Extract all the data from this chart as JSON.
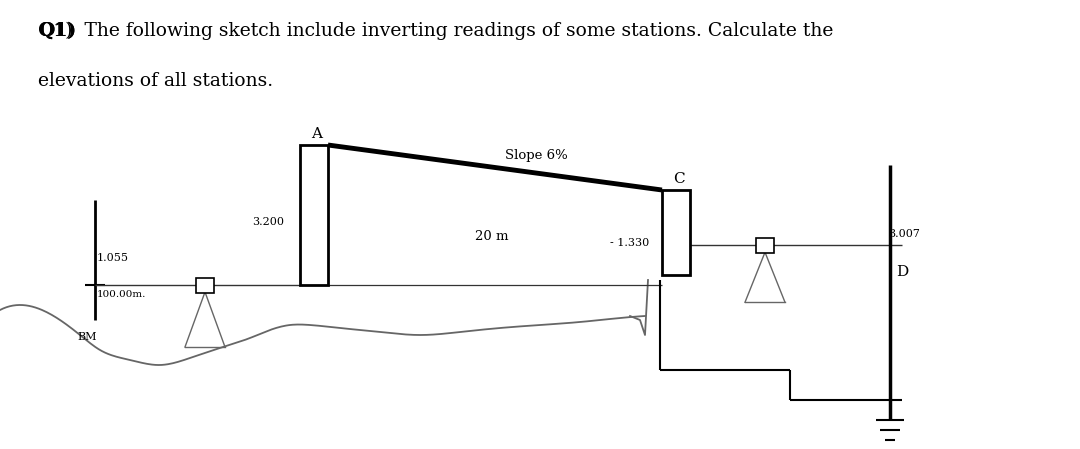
{
  "bg_color": "#ffffff",
  "text_color": "#000000",
  "title_bold": "Q1)",
  "title_rest": "  The following sketch include inverting readings of some stations. Calculate the",
  "title_line2": "elevations of all stations.",
  "bm_label": "BM",
  "bm_elev_label": "100.00m.",
  "bm_reading": "1.055",
  "staff_A_reading": "3.200",
  "slope_label": "Slope 6%",
  "dist_label": "20 m",
  "station_A_label": "A",
  "station_C_label": "C",
  "staff_C_reading": "- 1.330",
  "staff_D_reading": "3.007",
  "station_D_label": "D"
}
